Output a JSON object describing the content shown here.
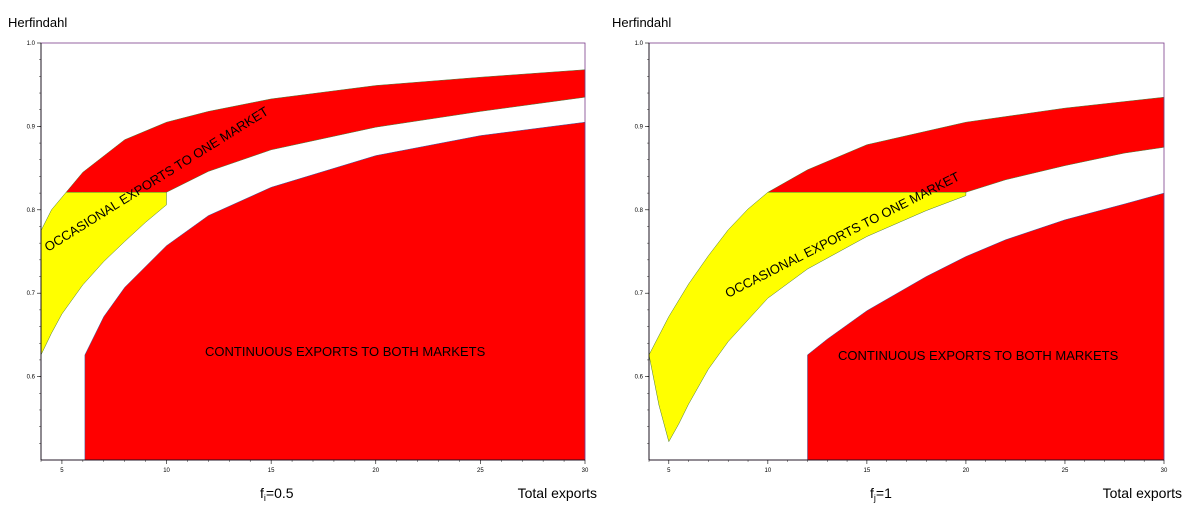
{
  "chart_data": [
    {
      "type": "area",
      "ylabel": "Herfindahl",
      "xlabel": "Total exports",
      "caption_main": "f",
      "caption_sub": "i",
      "caption_value": "=0.5",
      "xlim": [
        4,
        30
      ],
      "ylim": [
        0.5,
        1.0
      ],
      "x_ticks": [
        5,
        10,
        15,
        20,
        25,
        30
      ],
      "y_ticks": [
        0.6,
        0.7,
        0.8,
        0.9,
        1.0
      ],
      "x_tick_labels": [
        "5",
        "10",
        "15",
        "20",
        "25",
        "30"
      ],
      "y_tick_labels": [
        "0.6",
        "0.7",
        "0.8",
        "0.9",
        "1.0"
      ],
      "colors": {
        "occasional": "#ff0000",
        "occasional_low": "#ffff00",
        "continuous": "#ff0000"
      },
      "annotations": [
        {
          "name": "occasional",
          "text": "OCCASIONAL EXPORTS TO ONE MARKET"
        },
        {
          "name": "continuous",
          "text": "CONTINUOUS EXPORTS TO BOTH MARKETS"
        }
      ],
      "series": [
        {
          "name": "occasional_upper",
          "x": [
            5.2,
            6,
            8,
            10,
            12,
            15,
            20,
            25,
            30
          ],
          "values": [
            0.821,
            0.845,
            0.884,
            0.905,
            0.918,
            0.933,
            0.949,
            0.959,
            0.968
          ]
        },
        {
          "name": "occasional_lower",
          "x": [
            10,
            12,
            15,
            20,
            25,
            30
          ],
          "values": [
            0.821,
            0.846,
            0.872,
            0.899,
            0.918,
            0.935
          ]
        },
        {
          "name": "occasional_low_upper",
          "x": [
            4,
            4.5,
            5.2,
            6,
            7,
            8,
            9,
            10
          ],
          "values": [
            0.775,
            0.8,
            0.821,
            0.821,
            0.821,
            0.821,
            0.821,
            0.821
          ]
        },
        {
          "name": "occasional_low_lower",
          "x": [
            4,
            4.5,
            5,
            6,
            7,
            8,
            9,
            10
          ],
          "values": [
            0.626,
            0.652,
            0.675,
            0.71,
            0.738,
            0.762,
            0.785,
            0.806
          ]
        },
        {
          "name": "continuous_upper",
          "x": [
            6.1,
            7,
            8,
            10,
            12,
            15,
            20,
            25,
            30
          ],
          "values": [
            0.626,
            0.672,
            0.707,
            0.757,
            0.793,
            0.827,
            0.865,
            0.889,
            0.905
          ]
        },
        {
          "name": "continuous_lower",
          "x": [
            6.1,
            30
          ],
          "values": [
            0.5,
            0.5
          ]
        }
      ]
    },
    {
      "type": "area",
      "ylabel": "Herfindahl",
      "xlabel": "Total exports",
      "caption_main": "f",
      "caption_sub": "j",
      "caption_value": "=1",
      "xlim": [
        4,
        30
      ],
      "ylim": [
        0.5,
        1.0
      ],
      "x_ticks": [
        5,
        10,
        15,
        20,
        25,
        30
      ],
      "y_ticks": [
        0.6,
        0.7,
        0.8,
        0.9,
        1.0
      ],
      "x_tick_labels": [
        "5",
        "10",
        "15",
        "20",
        "25",
        "30"
      ],
      "y_tick_labels": [
        "0.6",
        "0.7",
        "0.8",
        "0.9",
        "1.0"
      ],
      "colors": {
        "occasional": "#ff0000",
        "occasional_low": "#ffff00",
        "continuous": "#ff0000"
      },
      "annotations": [
        {
          "name": "occasional",
          "text": "OCCASIONAL EXPORTS TO ONE MARKET"
        },
        {
          "name": "continuous",
          "text": "CONTINUOUS EXPORTS TO BOTH MARKETS"
        }
      ],
      "series": [
        {
          "name": "occasional_upper",
          "x": [
            10,
            12,
            15,
            20,
            25,
            30
          ],
          "values": [
            0.821,
            0.848,
            0.878,
            0.905,
            0.922,
            0.935
          ]
        },
        {
          "name": "occasional_lower",
          "x": [
            20,
            22,
            25,
            28,
            30
          ],
          "values": [
            0.821,
            0.836,
            0.853,
            0.868,
            0.875
          ]
        },
        {
          "name": "occasional_low_upper",
          "x": [
            4,
            5,
            6,
            7,
            8,
            9,
            10,
            12,
            15,
            20
          ],
          "values": [
            0.626,
            0.672,
            0.711,
            0.745,
            0.776,
            0.801,
            0.821,
            0.821,
            0.821,
            0.821
          ]
        },
        {
          "name": "occasional_low_lower",
          "x": [
            4,
            4.5,
            5,
            5.5,
            6,
            7,
            8,
            10,
            12,
            15,
            18,
            20
          ],
          "values": [
            0.626,
            0.566,
            0.522,
            0.543,
            0.567,
            0.609,
            0.642,
            0.694,
            0.729,
            0.768,
            0.799,
            0.817
          ]
        },
        {
          "name": "continuous_upper",
          "x": [
            12,
            13,
            15,
            18,
            20,
            22,
            25,
            28,
            30
          ],
          "values": [
            0.626,
            0.645,
            0.679,
            0.72,
            0.744,
            0.764,
            0.788,
            0.807,
            0.82
          ]
        },
        {
          "name": "continuous_lower",
          "x": [
            12,
            30
          ],
          "values": [
            0.5,
            0.5
          ]
        }
      ]
    }
  ]
}
